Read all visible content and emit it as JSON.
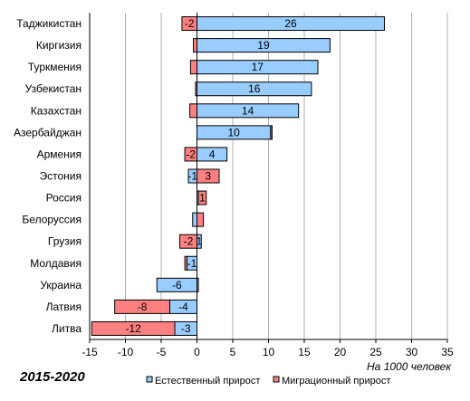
{
  "chart_data": {
    "type": "bar",
    "orientation": "horizontal",
    "stacked": true,
    "categories": [
      "Таджикистан",
      "Киргизия",
      "Туркмения",
      "Узбекистан",
      "Казахстан",
      "Азербайджан",
      "Армения",
      "Эстония",
      "Россия",
      "Белоруссия",
      "Грузия",
      "Молдавия",
      "Украина",
      "Латвия",
      "Литва"
    ],
    "series": [
      {
        "name": "Естественный прирост",
        "color": "#99ccff",
        "values": [
          26.2,
          18.6,
          16.9,
          16.0,
          14.2,
          10.3,
          4.2,
          -1.2,
          0.2,
          -0.6,
          0.6,
          -1.4,
          -5.6,
          -3.8,
          -3.1
        ],
        "labels": [
          "26",
          "19",
          "17",
          "16",
          "14",
          "10",
          "4",
          "-1",
          "",
          "",
          "1",
          "-1",
          "-6",
          "-4",
          "-3"
        ]
      },
      {
        "name": "Миграционный прирост",
        "color": "#ff8080",
        "values": [
          -2.1,
          -0.5,
          -0.9,
          -0.2,
          -1.0,
          0.2,
          -1.7,
          3.1,
          1.1,
          0.9,
          -2.4,
          -0.3,
          0.2,
          -7.7,
          -11.6
        ],
        "labels": [
          "-2",
          "",
          "",
          "",
          "",
          "",
          "-2",
          "3",
          "1",
          "",
          "-2",
          "",
          "",
          "-8",
          "-12"
        ]
      }
    ],
    "xlim": [
      -15,
      35
    ],
    "xticks": [
      -15,
      -10,
      -5,
      0,
      5,
      10,
      15,
      20,
      25,
      30,
      35
    ],
    "unit_label": "На 1000 человек",
    "legend_position": "bottom",
    "grid": "vertical"
  },
  "period_label": "2015-2020"
}
